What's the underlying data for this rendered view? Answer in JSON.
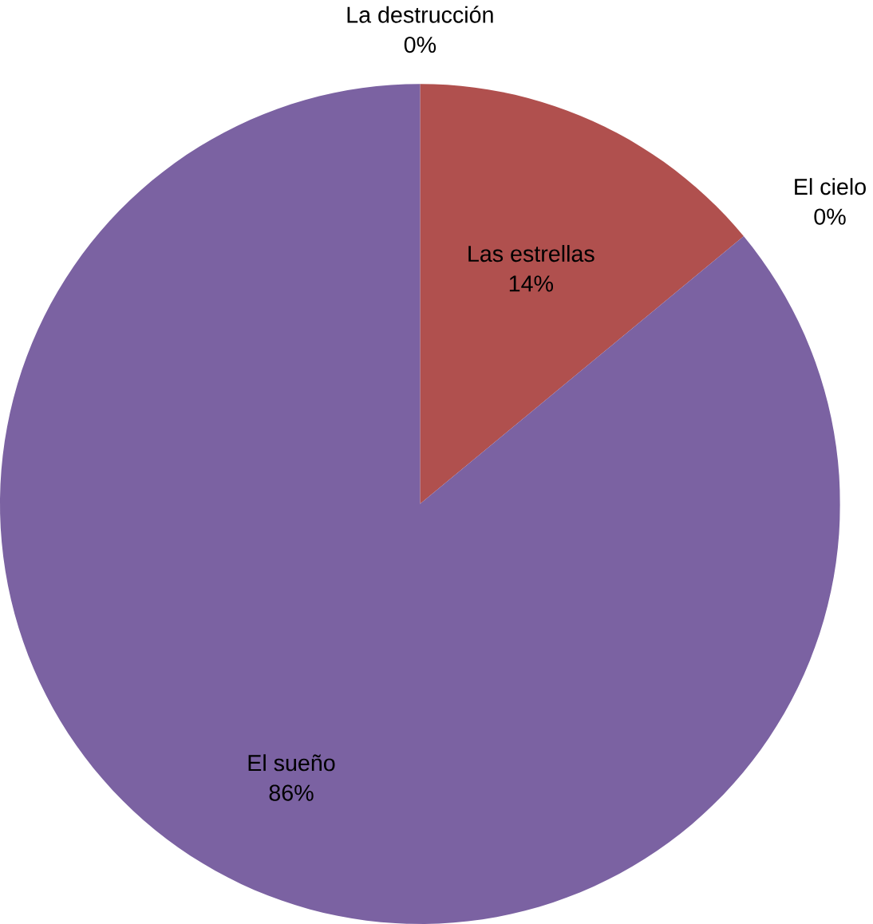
{
  "chart_data": {
    "type": "pie",
    "categories": [
      "La destrucción",
      "Las estrellas",
      "El cielo",
      "El sueño"
    ],
    "values": [
      0,
      14,
      0,
      86
    ],
    "value_labels": [
      "0%",
      "14%",
      "0%",
      "86%"
    ],
    "colors": [
      "#4f81bd",
      "#b0504e",
      "#9bbb59",
      "#7b62a2"
    ]
  }
}
